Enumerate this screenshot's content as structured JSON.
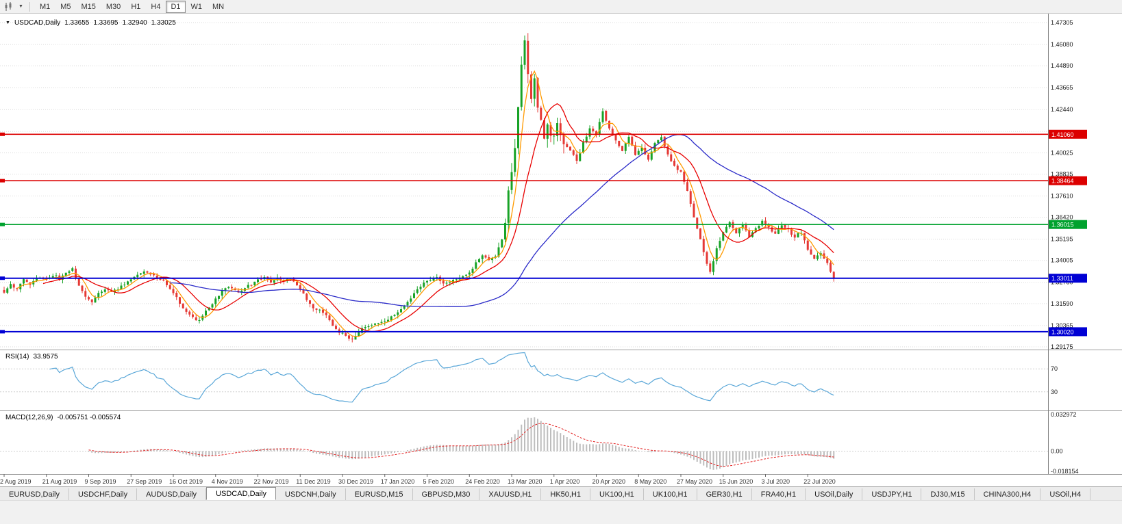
{
  "toolbar": {
    "chart_type_icon": "candlestick-chart",
    "timeframes": [
      "M1",
      "M5",
      "M15",
      "M30",
      "H1",
      "H4",
      "D1",
      "W1",
      "MN"
    ],
    "active_timeframe": "D1"
  },
  "chart": {
    "symbol": "USDCAD",
    "period": "Daily",
    "title": "USDCAD,Daily",
    "open": "1.33655",
    "high": "1.33695",
    "low": "1.32940",
    "close": "1.33025"
  },
  "chart_data": {
    "type": "candlestick",
    "symbol": "USDCAD",
    "period": "Daily",
    "x_labels": [
      "2 Aug 2019",
      "21 Aug 2019",
      "9 Sep 2019",
      "27 Sep 2019",
      "16 Oct 2019",
      "4 Nov 2019",
      "22 Nov 2019",
      "11 Dec 2019",
      "30 Dec 2019",
      "17 Jan 2020",
      "5 Feb 2020",
      "24 Feb 2020",
      "13 Mar 2020",
      "1 Apr 2020",
      "20 Apr 2020",
      "8 May 2020",
      "27 May 2020",
      "15 Jun 2020",
      "3 Jul 2020",
      "22 Jul 2020"
    ],
    "bars_per_label": 13,
    "total_bars": 256,
    "seed": 11,
    "close_noise": 0.0014,
    "wick_noise": 0.0021,
    "volatile_range": [
      152,
      172
    ],
    "volatile_mult": 2.6,
    "last_close": 1.33025,
    "close_anchors": [
      [
        0,
        1.322
      ],
      [
        2,
        1.3265
      ],
      [
        4,
        1.324
      ],
      [
        6,
        1.3295
      ],
      [
        8,
        1.327
      ],
      [
        10,
        1.3305
      ],
      [
        13,
        1.329
      ],
      [
        15,
        1.332
      ],
      [
        17,
        1.33
      ],
      [
        19,
        1.333
      ],
      [
        21,
        1.335
      ],
      [
        23,
        1.326
      ],
      [
        25,
        1.32
      ],
      [
        27,
        1.317
      ],
      [
        29,
        1.3215
      ],
      [
        31,
        1.324
      ],
      [
        33,
        1.3225
      ],
      [
        35,
        1.3245
      ],
      [
        37,
        1.327
      ],
      [
        39,
        1.329
      ],
      [
        41,
        1.332
      ],
      [
        43,
        1.334
      ],
      [
        45,
        1.333
      ],
      [
        47,
        1.33
      ],
      [
        49,
        1.328
      ],
      [
        52,
        1.322
      ],
      [
        54,
        1.316
      ],
      [
        56,
        1.311
      ],
      [
        58,
        1.308
      ],
      [
        60,
        1.3065
      ],
      [
        62,
        1.312
      ],
      [
        65,
        1.318
      ],
      [
        67,
        1.323
      ],
      [
        69,
        1.3255
      ],
      [
        71,
        1.3235
      ],
      [
        73,
        1.3225
      ],
      [
        75,
        1.3255
      ],
      [
        78,
        1.3295
      ],
      [
        80,
        1.331
      ],
      [
        82,
        1.328
      ],
      [
        84,
        1.33
      ],
      [
        86,
        1.3285
      ],
      [
        88,
        1.3305
      ],
      [
        91,
        1.324
      ],
      [
        93,
        1.318
      ],
      [
        95,
        1.314
      ],
      [
        97,
        1.312
      ],
      [
        99,
        1.309
      ],
      [
        101,
        1.304
      ],
      [
        103,
        1.3
      ],
      [
        105,
        1.2975
      ],
      [
        107,
        1.296
      ],
      [
        109,
        1.2995
      ],
      [
        111,
        1.303
      ],
      [
        113,
        1.3045
      ],
      [
        115,
        1.305
      ],
      [
        117,
        1.306
      ],
      [
        119,
        1.309
      ],
      [
        121,
        1.311
      ],
      [
        123,
        1.3145
      ],
      [
        125,
        1.319
      ],
      [
        127,
        1.324
      ],
      [
        129,
        1.328
      ],
      [
        131,
        1.3295
      ],
      [
        133,
        1.3305
      ],
      [
        135,
        1.3265
      ],
      [
        137,
        1.3285
      ],
      [
        139,
        1.3295
      ],
      [
        141,
        1.331
      ],
      [
        143,
        1.3325
      ],
      [
        145,
        1.339
      ],
      [
        147,
        1.343
      ],
      [
        149,
        1.34
      ],
      [
        151,
        1.343
      ],
      [
        153,
        1.352
      ],
      [
        154,
        1.362
      ],
      [
        155,
        1.378
      ],
      [
        156,
        1.388
      ],
      [
        157,
        1.402
      ],
      [
        158,
        1.426
      ],
      [
        159,
        1.449
      ],
      [
        160,
        1.464
      ],
      [
        161,
        1.444
      ],
      [
        162,
        1.431
      ],
      [
        163,
        1.442
      ],
      [
        164,
        1.427
      ],
      [
        165,
        1.418
      ],
      [
        166,
        1.409
      ],
      [
        167,
        1.417
      ],
      [
        168,
        1.412
      ],
      [
        169,
        1.409
      ],
      [
        170,
        1.416
      ],
      [
        172,
        1.406
      ],
      [
        174,
        1.401
      ],
      [
        176,
        1.396
      ],
      [
        178,
        1.406
      ],
      [
        180,
        1.414
      ],
      [
        182,
        1.411
      ],
      [
        184,
        1.424
      ],
      [
        186,
        1.414
      ],
      [
        188,
        1.407
      ],
      [
        190,
        1.402
      ],
      [
        192,
        1.409
      ],
      [
        194,
        1.399
      ],
      [
        196,
        1.403
      ],
      [
        198,
        1.396
      ],
      [
        200,
        1.406
      ],
      [
        202,
        1.409
      ],
      [
        204,
        1.399
      ],
      [
        206,
        1.393
      ],
      [
        208,
        1.389
      ],
      [
        210,
        1.379
      ],
      [
        212,
        1.365
      ],
      [
        214,
        1.352
      ],
      [
        216,
        1.338
      ],
      [
        217,
        1.333
      ],
      [
        219,
        1.347
      ],
      [
        221,
        1.356
      ],
      [
        223,
        1.362
      ],
      [
        225,
        1.356
      ],
      [
        227,
        1.36
      ],
      [
        229,
        1.353
      ],
      [
        231,
        1.358
      ],
      [
        233,
        1.362
      ],
      [
        235,
        1.3585
      ],
      [
        237,
        1.3555
      ],
      [
        239,
        1.3595
      ],
      [
        241,
        1.357
      ],
      [
        243,
        1.353
      ],
      [
        245,
        1.356
      ],
      [
        247,
        1.346
      ],
      [
        249,
        1.341
      ],
      [
        251,
        1.344
      ],
      [
        253,
        1.3385
      ],
      [
        255,
        1.3303
      ]
    ],
    "price_axis": {
      "max": 1.47305,
      "min": 1.29175,
      "ticks": [
        "1.47305",
        "1.46080",
        "1.44890",
        "1.43665",
        "1.42440",
        "1.41215",
        "1.40025",
        "1.38835",
        "1.37610",
        "1.36420",
        "1.35195",
        "1.34005",
        "1.32780",
        "1.31590",
        "1.30365",
        "1.29175"
      ]
    },
    "levels": [
      {
        "price": 1.4106,
        "label": "1.41060",
        "color": "#dc0000",
        "width": 1.6
      },
      {
        "price": 1.38464,
        "label": "1.38464",
        "color": "#dc0000",
        "width": 1.6
      },
      {
        "price": 1.36015,
        "label": "1.36015",
        "color": "#00a22e",
        "width": 1.6
      },
      {
        "price": 1.33011,
        "label": "1.33011",
        "color": "#0000d4",
        "width": 2
      },
      {
        "price": 1.3002,
        "label": "1.30020",
        "color": "#0000d4",
        "width": 2
      }
    ],
    "moving_averages": [
      {
        "period": 5,
        "color": "#ff9a00"
      },
      {
        "period": 13,
        "color": "#e80000"
      },
      {
        "period": 52,
        "color": "#2929c8"
      }
    ],
    "candle_up_color": "#18a327",
    "candle_down_color": "#e53935",
    "rsi": {
      "label": "RSI(14)",
      "value": "33.9575",
      "period": 14,
      "upper": 70,
      "lower": 30,
      "level_labels": [
        "70",
        "30"
      ],
      "color": "#5aa7d8"
    },
    "macd": {
      "label": "MACD(12,26,9)",
      "value": "-0.005751 -0.005574",
      "fast": 12,
      "slow": 26,
      "signal_period": 9,
      "axis_labels": [
        "0.032972",
        "0.00",
        "-0.018154"
      ],
      "axis_max": 0.032972,
      "axis_min": -0.018154,
      "histogram_color": "#bdbdbd",
      "signal_color": "#e32222"
    }
  },
  "tabs": {
    "items": [
      "EURUSD,Daily",
      "USDCHF,Daily",
      "AUDUSD,Daily",
      "USDCAD,Daily",
      "USDCNH,Daily",
      "EURUSD,M15",
      "GBPUSD,M30",
      "XAUUSD,H1",
      "HK50,H1",
      "UK100,H1",
      "UK100,H1",
      "GER30,H1",
      "FRA40,H1",
      "USOil,Daily",
      "USDJPY,H1",
      "DJ30,M15",
      "CHINA300,H4",
      "USOil,H4"
    ],
    "active_index": 3
  }
}
